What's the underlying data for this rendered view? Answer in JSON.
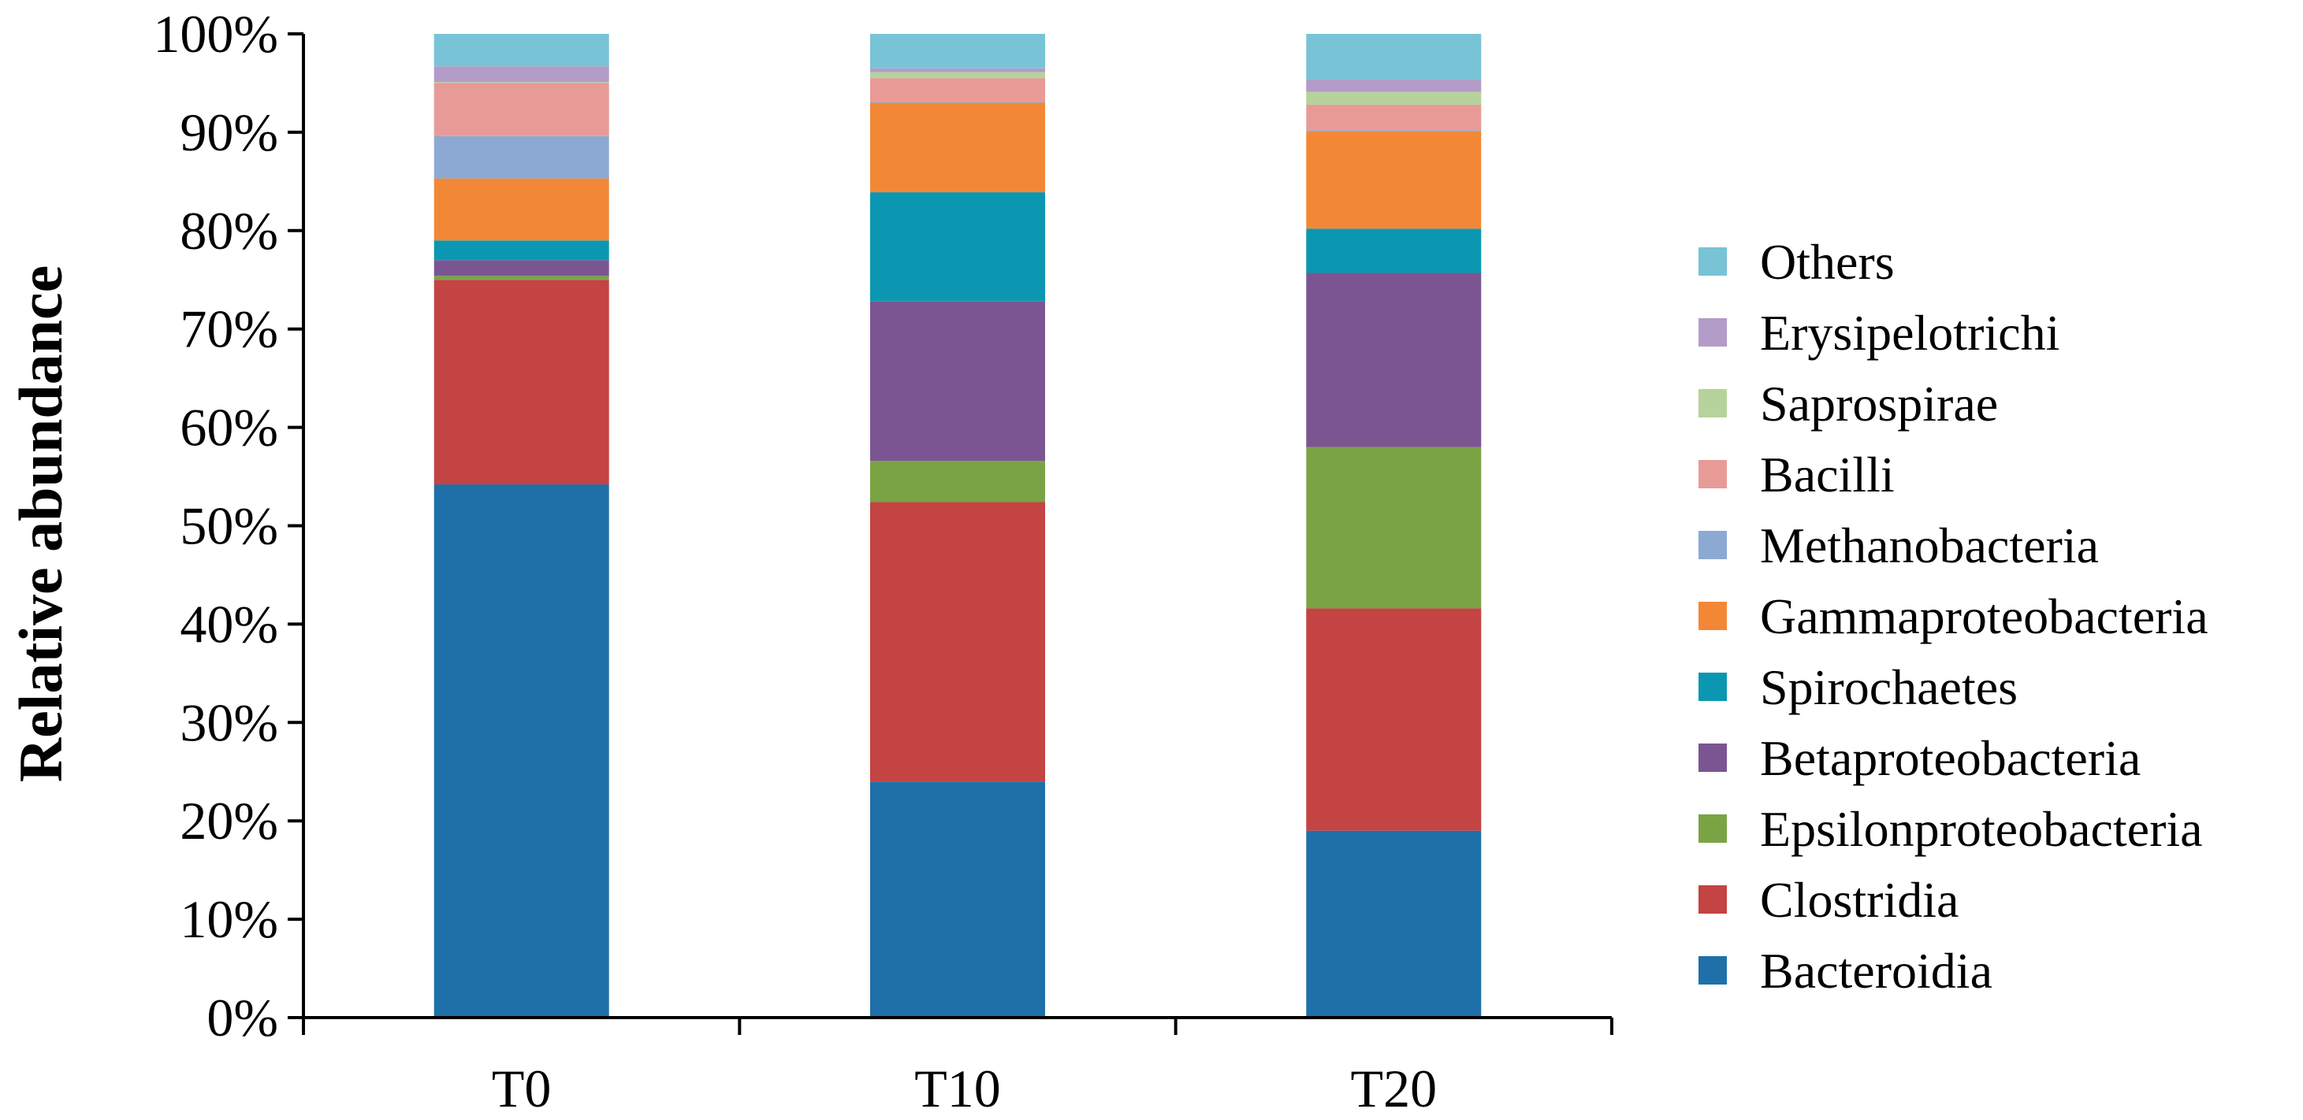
{
  "chart_data": {
    "type": "bar",
    "stacked": true,
    "percent": true,
    "categories": [
      "T0",
      "T10",
      "T20"
    ],
    "ylabel": "Relative abundance",
    "xlabel": "",
    "ylim": [
      0,
      100
    ],
    "yticks": [
      "0%",
      "10%",
      "20%",
      "30%",
      "40%",
      "50%",
      "60%",
      "70%",
      "80%",
      "90%",
      "100%"
    ],
    "legend_position": "right",
    "grid": false,
    "series": [
      {
        "name": "Bacteroidia",
        "color": "#1f70a8",
        "values": [
          54.2,
          24.0,
          19.0
        ]
      },
      {
        "name": "Clostridia",
        "color": "#c44343",
        "values": [
          20.8,
          28.4,
          22.6
        ]
      },
      {
        "name": "Epsilonproteobacteria",
        "color": "#7aa444",
        "values": [
          0.4,
          4.2,
          16.4
        ]
      },
      {
        "name": "Betaproteobacteria",
        "color": "#7b5592",
        "values": [
          1.6,
          16.2,
          17.7
        ]
      },
      {
        "name": "Spirochaetes",
        "color": "#0b97b1",
        "values": [
          2.0,
          11.1,
          4.5
        ]
      },
      {
        "name": "Gammaproteobacteria",
        "color": "#f28836",
        "values": [
          6.3,
          9.1,
          9.9
        ]
      },
      {
        "name": "Methanobacteria",
        "color": "#8ba9d3",
        "values": [
          4.3,
          0.1,
          0.1
        ]
      },
      {
        "name": "Bacilli",
        "color": "#e89a97",
        "values": [
          5.4,
          2.4,
          2.6
        ]
      },
      {
        "name": "Saprospirae",
        "color": "#b5d39a",
        "values": [
          0.1,
          0.6,
          1.3
        ]
      },
      {
        "name": "Erysipelotrichi",
        "color": "#b39cc8",
        "values": [
          1.6,
          0.4,
          1.3
        ]
      },
      {
        "name": "Others",
        "color": "#79c3d7",
        "values": [
          3.3,
          3.5,
          4.6
        ]
      }
    ]
  }
}
